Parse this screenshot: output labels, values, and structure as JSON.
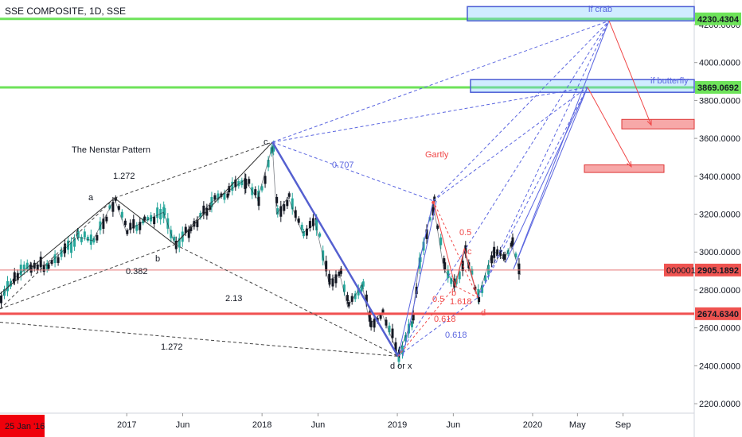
{
  "header": {
    "title": "SSE COMPOSITE, 1D, SSE"
  },
  "colors": {
    "price_line": "#e57373",
    "green_line": "#6ee35a",
    "blue_box": "#4a5bd4",
    "blue_lines": "#5b66e0",
    "red_lines": "#f04848",
    "pink_box": "#f7a8a8",
    "dashed_black": "#444444",
    "candle_up": "#26a69a",
    "candle_down": "#131722"
  },
  "chart_data": {
    "type": "line",
    "ylim": [
      2150,
      4330
    ],
    "y_ticks": [
      "4200.0000",
      "4000.0000",
      "3800.0000",
      "3600.0000",
      "3400.0000",
      "3200.0000",
      "3000.0000",
      "2800.0000",
      "2600.0000",
      "2400.0000",
      "2200.0000"
    ],
    "y_tick_values": [
      4200,
      4000,
      3800,
      3600,
      3400,
      3200,
      3000,
      2800,
      2600,
      2400,
      2200
    ],
    "x_ticks": [
      "2017",
      "Jun",
      "2018",
      "Jun",
      "2019",
      "Jun",
      "2020",
      "May",
      "Sep"
    ],
    "x_tick_dates": [
      "2017-01-01",
      "2017-06-01",
      "2018-01-01",
      "2018-06-01",
      "2019-01-01",
      "2019-06-01",
      "2020-01-01",
      "2020-05-01",
      "2020-09-01"
    ],
    "date_badge": "25 Jan '16",
    "series": [
      {
        "dates": [
          "2016-01-25",
          "2016-03-01",
          "2016-04-15",
          "2016-06-01",
          "2016-07-15",
          "2016-08-20",
          "2016-10-01",
          "2016-11-29",
          "2016-12-30",
          "2017-02-15",
          "2017-04-10",
          "2017-05-11",
          "2017-06-20",
          "2017-08-15",
          "2017-10-01",
          "2017-11-15",
          "2017-12-20",
          "2018-01-29",
          "2018-02-09",
          "2018-03-12",
          "2018-04-20",
          "2018-05-25",
          "2018-06-29",
          "2018-07-30",
          "2018-08-20",
          "2018-09-28",
          "2018-10-19",
          "2018-11-20",
          "2019-01-03",
          "2019-02-10",
          "2019-03-01",
          "2019-04-08",
          "2019-05-06",
          "2019-06-06",
          "2019-07-01",
          "2019-08-06",
          "2019-09-16",
          "2019-10-15",
          "2019-11-05",
          "2019-11-29"
        ],
        "values": [
          2750,
          2860,
          2930,
          2930,
          3010,
          3080,
          3060,
          3280,
          3110,
          3160,
          3210,
          3040,
          3130,
          3260,
          3320,
          3380,
          3280,
          3560,
          3200,
          3290,
          3100,
          3150,
          2850,
          2880,
          2710,
          2830,
          2620,
          2680,
          2460,
          2640,
          2950,
          3260,
          2910,
          2830,
          3000,
          2760,
          3010,
          2960,
          3040,
          2880
        ]
      }
    ],
    "horizontal_lines": [
      {
        "value": 4230.4304,
        "label": "4230.4304"
      },
      {
        "value": 3869.0692,
        "label": "3869.0692"
      },
      {
        "value": 2905.1892,
        "label": "2905.1892",
        "tag": "000001"
      },
      {
        "value": 2674.634,
        "label": "2674.6340"
      }
    ],
    "annotations": [
      "The Nenstar Pattern",
      "1.272",
      "a",
      "b",
      "0.382",
      "c",
      "2.13",
      "1.272",
      "d or x",
      "0.707",
      "Gartly",
      "0.5",
      "0.5",
      "b",
      "1.618",
      "0.618",
      "0.618",
      "d",
      "c",
      "if crab",
      "if butterfly"
    ]
  }
}
